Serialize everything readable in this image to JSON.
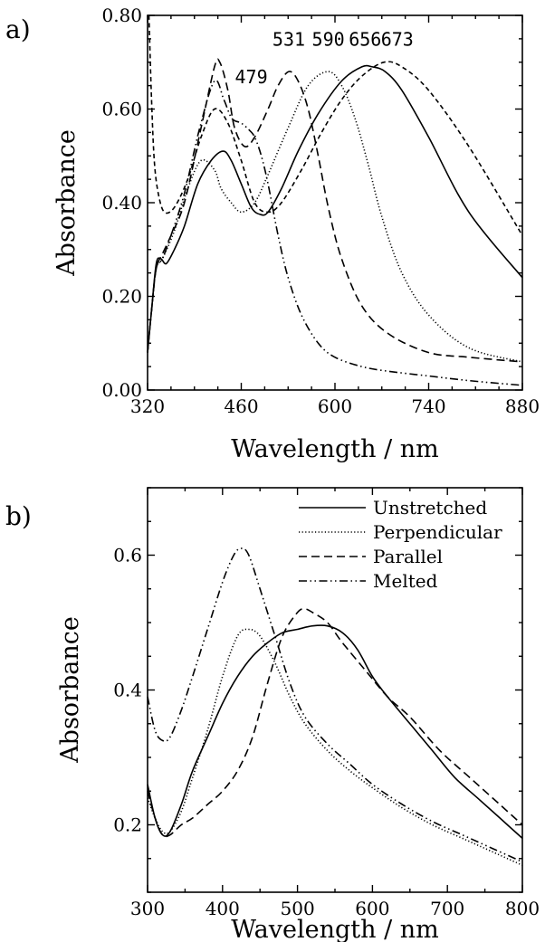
{
  "chart_data": [
    {
      "type": "line",
      "panel_label": "a)",
      "xlabel": "Wavelength / nm",
      "ylabel": "Absorbance",
      "xlim": [
        320,
        880
      ],
      "ylim": [
        0.0,
        0.8
      ],
      "xticks": [
        {
          "value": 320,
          "label": "320"
        },
        {
          "value": 460,
          "label": "460"
        },
        {
          "value": 600,
          "label": "600"
        },
        {
          "value": 740,
          "label": "740"
        },
        {
          "value": 880,
          "label": "880"
        }
      ],
      "yticks": [
        {
          "value": 0.0,
          "label": "0.00"
        },
        {
          "value": 0.2,
          "label": "0.20"
        },
        {
          "value": 0.4,
          "label": "0.40"
        },
        {
          "value": 0.6,
          "label": "0.60"
        },
        {
          "value": 0.8,
          "label": "0.80"
        }
      ],
      "grid": false,
      "annotations": [
        {
          "text": "479",
          "x": 475,
          "y": 0.655
        },
        {
          "text": "531",
          "x": 531,
          "y": 0.735
        },
        {
          "text": "590",
          "x": 590,
          "y": 0.735
        },
        {
          "text": "656",
          "x": 645,
          "y": 0.735
        },
        {
          "text": "673",
          "x": 693,
          "y": 0.735
        }
      ],
      "series": [
        {
          "style": "dashdot",
          "x": [
            320,
            326,
            333,
            342,
            355,
            375,
            398,
            420,
            434,
            446,
            460,
            472,
            480,
            490,
            500,
            515,
            530,
            550,
            575,
            600,
            640,
            680,
            740,
            800,
            880
          ],
          "y": [
            0.08,
            0.17,
            0.26,
            0.28,
            0.33,
            0.42,
            0.56,
            0.66,
            0.62,
            0.58,
            0.57,
            0.555,
            0.54,
            0.5,
            0.44,
            0.33,
            0.24,
            0.16,
            0.1,
            0.07,
            0.05,
            0.04,
            0.03,
            0.02,
            0.01
          ]
        },
        {
          "style": "dashed",
          "x": [
            320,
            326,
            333,
            342,
            355,
            375,
            400,
            420,
            428,
            440,
            450,
            465,
            480,
            500,
            515,
            531,
            545,
            560,
            575,
            590,
            610,
            640,
            680,
            740,
            800,
            880
          ],
          "y": [
            0.08,
            0.17,
            0.26,
            0.29,
            0.33,
            0.4,
            0.56,
            0.69,
            0.7,
            0.64,
            0.56,
            0.52,
            0.54,
            0.6,
            0.65,
            0.68,
            0.66,
            0.6,
            0.5,
            0.39,
            0.28,
            0.18,
            0.12,
            0.08,
            0.07,
            0.06
          ]
        },
        {
          "style": "dotted",
          "x": [
            320,
            326,
            333,
            342,
            360,
            380,
            400,
            420,
            430,
            445,
            460,
            480,
            500,
            530,
            560,
            590,
            610,
            630,
            650,
            670,
            700,
            740,
            800,
            880
          ],
          "y": [
            0.08,
            0.17,
            0.26,
            0.28,
            0.34,
            0.43,
            0.49,
            0.47,
            0.43,
            0.4,
            0.38,
            0.4,
            0.46,
            0.56,
            0.65,
            0.68,
            0.65,
            0.58,
            0.48,
            0.37,
            0.25,
            0.16,
            0.09,
            0.06
          ]
        },
        {
          "style": "solid",
          "x": [
            320,
            326,
            333,
            340,
            348,
            360,
            375,
            395,
            415,
            433,
            445,
            460,
            475,
            488,
            500,
            520,
            545,
            575,
            610,
            640,
            656,
            675,
            700,
            740,
            800,
            880
          ],
          "y": [
            0.08,
            0.17,
            0.27,
            0.28,
            0.27,
            0.3,
            0.35,
            0.44,
            0.49,
            0.51,
            0.49,
            0.44,
            0.39,
            0.375,
            0.38,
            0.43,
            0.51,
            0.59,
            0.66,
            0.69,
            0.69,
            0.68,
            0.64,
            0.54,
            0.38,
            0.24
          ]
        },
        {
          "style": "short-dashed",
          "x": [
            322,
            326,
            330,
            336,
            345,
            360,
            380,
            400,
            420,
            440,
            460,
            480,
            500,
            520,
            550,
            580,
            610,
            640,
            673,
            700,
            740,
            800,
            880
          ],
          "y": [
            0.8,
            0.62,
            0.49,
            0.42,
            0.38,
            0.39,
            0.45,
            0.54,
            0.6,
            0.57,
            0.49,
            0.4,
            0.38,
            0.4,
            0.47,
            0.55,
            0.62,
            0.67,
            0.7,
            0.69,
            0.64,
            0.52,
            0.33
          ]
        }
      ]
    },
    {
      "type": "line",
      "panel_label": "b)",
      "xlabel": "Wavelength / nm",
      "ylabel": "Absorbance",
      "xlim": [
        300,
        800
      ],
      "ylim": [
        0.1,
        0.7
      ],
      "xticks": [
        {
          "value": 300,
          "label": "300"
        },
        {
          "value": 400,
          "label": "400"
        },
        {
          "value": 500,
          "label": "500"
        },
        {
          "value": 600,
          "label": "600"
        },
        {
          "value": 700,
          "label": "700"
        },
        {
          "value": 800,
          "label": "800"
        }
      ],
      "yticks": [
        {
          "value": 0.2,
          "label": "0.2"
        },
        {
          "value": 0.4,
          "label": "0.4"
        },
        {
          "value": 0.6,
          "label": "0.6"
        }
      ],
      "grid": false,
      "legend_position": "top-right",
      "series": [
        {
          "name": "Unstretched",
          "style": "solid",
          "x": [
            300,
            310,
            320,
            330,
            345,
            360,
            380,
            400,
            420,
            440,
            460,
            480,
            500,
            520,
            540,
            560,
            580,
            600,
            620,
            650,
            680,
            710,
            740,
            770,
            800
          ],
          "y": [
            0.26,
            0.21,
            0.185,
            0.19,
            0.23,
            0.28,
            0.33,
            0.38,
            0.42,
            0.45,
            0.47,
            0.485,
            0.49,
            0.495,
            0.495,
            0.485,
            0.46,
            0.42,
            0.39,
            0.35,
            0.31,
            0.27,
            0.24,
            0.21,
            0.18
          ]
        },
        {
          "name": "Perpendicular",
          "style": "dotted",
          "x": [
            300,
            310,
            320,
            330,
            345,
            360,
            380,
            400,
            420,
            435,
            450,
            470,
            490,
            510,
            540,
            570,
            600,
            640,
            680,
            720,
            760,
            800
          ],
          "y": [
            0.24,
            0.21,
            0.19,
            0.19,
            0.22,
            0.27,
            0.34,
            0.42,
            0.48,
            0.49,
            0.48,
            0.44,
            0.39,
            0.35,
            0.31,
            0.28,
            0.255,
            0.225,
            0.2,
            0.18,
            0.16,
            0.14
          ]
        },
        {
          "name": "Parallel",
          "style": "dashed",
          "x": [
            300,
            310,
            320,
            330,
            345,
            360,
            380,
            400,
            420,
            440,
            460,
            480,
            500,
            510,
            520,
            540,
            560,
            590,
            620,
            650,
            690,
            730,
            770,
            800
          ],
          "y": [
            0.25,
            0.21,
            0.185,
            0.185,
            0.2,
            0.21,
            0.23,
            0.25,
            0.28,
            0.33,
            0.41,
            0.48,
            0.515,
            0.52,
            0.515,
            0.5,
            0.47,
            0.43,
            0.39,
            0.36,
            0.31,
            0.27,
            0.23,
            0.2
          ]
        },
        {
          "name": "Melted",
          "style": "dashdot",
          "x": [
            300,
            310,
            320,
            330,
            345,
            360,
            380,
            400,
            415,
            425,
            435,
            450,
            470,
            490,
            510,
            540,
            570,
            600,
            640,
            680,
            720,
            760,
            800
          ],
          "y": [
            0.39,
            0.34,
            0.325,
            0.33,
            0.37,
            0.42,
            0.49,
            0.56,
            0.6,
            0.61,
            0.6,
            0.55,
            0.48,
            0.41,
            0.36,
            0.32,
            0.29,
            0.26,
            0.23,
            0.205,
            0.185,
            0.165,
            0.145
          ]
        }
      ]
    }
  ]
}
